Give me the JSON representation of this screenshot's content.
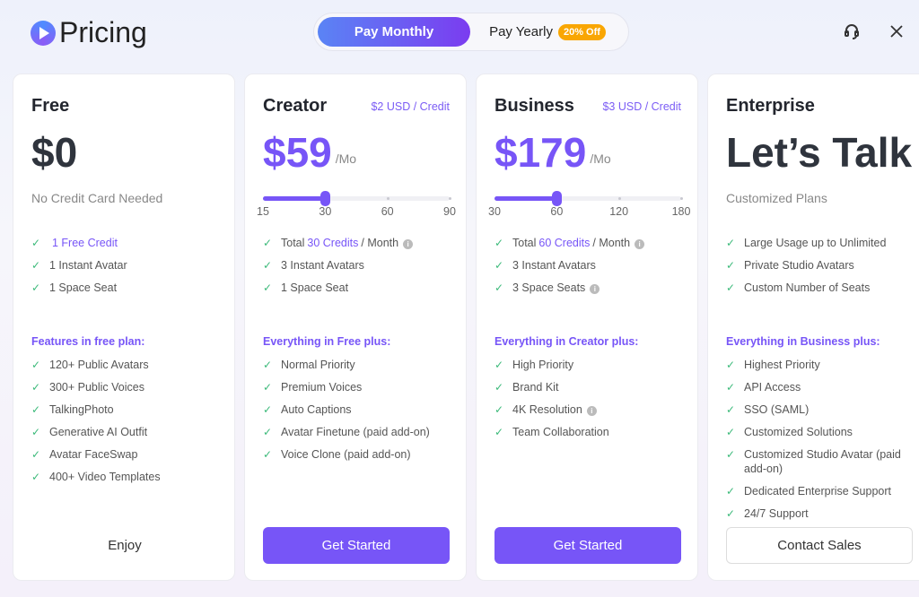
{
  "header": {
    "title": "Pricing",
    "billing": {
      "monthly": "Pay Monthly",
      "yearly": "Pay Yearly",
      "yearly_badge": "20% Off",
      "selected": "monthly"
    }
  },
  "colors": {
    "accent": "#7755f7",
    "check": "#3cba7a",
    "badge": "#f9a602"
  },
  "plans": [
    {
      "name": "Free",
      "price": "$0",
      "subtitle": "No Credit Card Needed",
      "features": [
        {
          "pre": "",
          "hl": "1 Free Credit",
          "post": ""
        },
        {
          "pre": "1 Instant Avatar"
        },
        {
          "pre": "1 Space Seat"
        }
      ],
      "section": "Features in free plan:",
      "extras": [
        "120+ Public Avatars",
        "300+ Public Voices",
        "TalkingPhoto",
        "Generative AI Outfit",
        "Avatar FaceSwap",
        "400+ Video Templates"
      ],
      "button": "Enjoy"
    },
    {
      "name": "Creator",
      "per_credit": "$2 USD / Credit",
      "price": "$59",
      "period": "/Mo",
      "slider": {
        "ticks": [
          "15",
          "30",
          "60",
          "90"
        ],
        "value": "30"
      },
      "features": [
        {
          "pre": "Total",
          "hl": "30 Credits",
          "post": "/ Month",
          "info": true
        },
        {
          "pre": "3 Instant Avatars"
        },
        {
          "pre": "1 Space Seat"
        }
      ],
      "section": "Everything in Free plus:",
      "extras": [
        "Normal Priority",
        "Premium Voices",
        "Auto Captions",
        "Avatar Finetune (paid add-on)",
        "Voice Clone (paid add-on)"
      ],
      "button": "Get Started"
    },
    {
      "name": "Business",
      "per_credit": "$3 USD / Credit",
      "price": "$179",
      "period": "/Mo",
      "slider": {
        "ticks": [
          "30",
          "60",
          "120",
          "180"
        ],
        "value": "60"
      },
      "features": [
        {
          "pre": "Total",
          "hl": "60 Credits",
          "post": "/ Month",
          "info": true
        },
        {
          "pre": "3 Instant Avatars"
        },
        {
          "pre": "3 Space Seats",
          "info": true
        }
      ],
      "section": "Everything in Creator plus:",
      "extras": [
        "High Priority",
        "Brand Kit",
        {
          "t": "4K Resolution",
          "info": true
        },
        "Team Collaboration"
      ],
      "button": "Get Started"
    },
    {
      "name": "Enterprise",
      "price": "Let’s Talk",
      "subtitle": "Customized Plans",
      "features": [
        {
          "pre": "Large Usage up to Unlimited"
        },
        {
          "pre": "Private Studio Avatars"
        },
        {
          "pre": "Custom Number of Seats"
        }
      ],
      "section": "Everything in Business plus:",
      "extras": [
        "Highest Priority",
        "API Access",
        "SSO (SAML)",
        "Customized Solutions",
        "Customized Studio Avatar (paid add-on)",
        "Dedicated Enterprise Support",
        "24/7 Support"
      ],
      "button": "Contact Sales"
    }
  ]
}
